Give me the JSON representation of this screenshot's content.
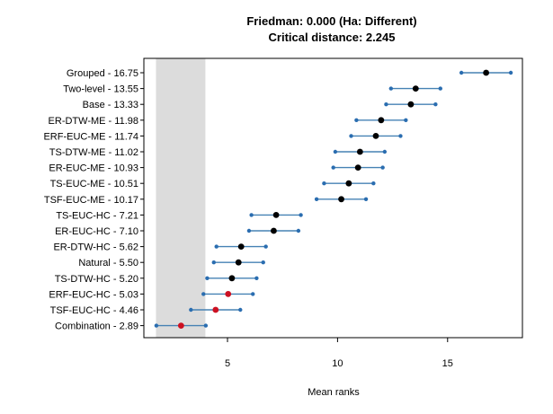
{
  "chart_data": {
    "type": "scatter",
    "title": "Friedman: 0.000 (Ha: Different)",
    "subtitle": "Critical distance: 2.245",
    "xlabel": "Mean ranks",
    "xlim": [
      1.2,
      18.4
    ],
    "xticks": [
      5,
      10,
      15
    ],
    "critical_distance": 2.245,
    "band": [
      1.75,
      3.995
    ],
    "items": [
      {
        "label": "Grouped - 16.75",
        "mean": 16.75,
        "highlight": false
      },
      {
        "label": "Two-level - 13.55",
        "mean": 13.55,
        "highlight": false
      },
      {
        "label": "Base - 13.33",
        "mean": 13.33,
        "highlight": false
      },
      {
        "label": "ER-DTW-ME - 11.98",
        "mean": 11.98,
        "highlight": false
      },
      {
        "label": "ERF-EUC-ME - 11.74",
        "mean": 11.74,
        "highlight": false
      },
      {
        "label": "TS-DTW-ME - 11.02",
        "mean": 11.02,
        "highlight": false
      },
      {
        "label": "ER-EUC-ME - 10.93",
        "mean": 10.93,
        "highlight": false
      },
      {
        "label": "TS-EUC-ME - 10.51",
        "mean": 10.51,
        "highlight": false
      },
      {
        "label": "TSF-EUC-ME - 10.17",
        "mean": 10.17,
        "highlight": false
      },
      {
        "label": "TS-EUC-HC - 7.21",
        "mean": 7.21,
        "highlight": false
      },
      {
        "label": "ER-EUC-HC - 7.10",
        "mean": 7.1,
        "highlight": false
      },
      {
        "label": "ER-DTW-HC - 5.62",
        "mean": 5.62,
        "highlight": false
      },
      {
        "label": "Natural - 5.50",
        "mean": 5.5,
        "highlight": false
      },
      {
        "label": "TS-DTW-HC - 5.20",
        "mean": 5.2,
        "highlight": false
      },
      {
        "label": "ERF-EUC-HC - 5.03",
        "mean": 5.03,
        "highlight": true
      },
      {
        "label": "TSF-EUC-HC - 4.46",
        "mean": 4.46,
        "highlight": true
      },
      {
        "label": "Combination - 2.89",
        "mean": 2.89,
        "highlight": true
      }
    ]
  },
  "colors": {
    "band": "#dcdcdc",
    "line": "#4682b4",
    "whisker_point": "#2a6db0",
    "mean_point": "#000000",
    "highlight_point": "#cc1122",
    "axis": "#000000"
  }
}
